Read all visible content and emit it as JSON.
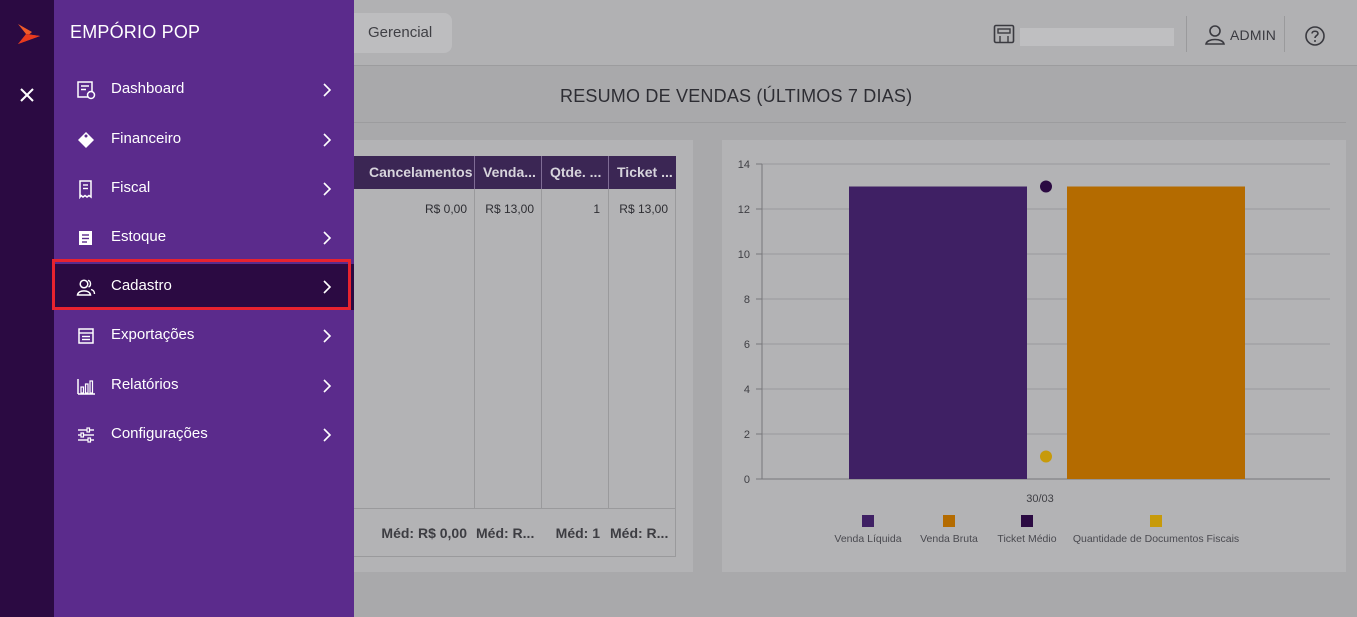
{
  "app": {
    "brand": "EMPÓRIO POP",
    "tab_label": "Gerencial",
    "user_label": "ADMIN"
  },
  "menu": {
    "items": [
      {
        "label": "Dashboard",
        "icon": "dashboard-icon"
      },
      {
        "label": "Financeiro",
        "icon": "tag-icon"
      },
      {
        "label": "Fiscal",
        "icon": "receipt-icon"
      },
      {
        "label": "Estoque",
        "icon": "box-icon"
      },
      {
        "label": "Cadastro",
        "icon": "users-icon",
        "active": true
      },
      {
        "label": "Exportações",
        "icon": "export-icon"
      },
      {
        "label": "Relatórios",
        "icon": "bar-report-icon"
      },
      {
        "label": "Configurações",
        "icon": "sliders-icon"
      }
    ]
  },
  "summary": {
    "title": "RESUMO DE VENDAS (ÚLTIMOS 7 DIAS)"
  },
  "table": {
    "headers": [
      "Cancelamentos",
      "Venda...",
      "Qtde. ...",
      "Ticket ..."
    ],
    "row": [
      "R$ 0,00",
      "R$ 13,00",
      "1",
      "R$ 13,00"
    ],
    "footer": [
      "Méd: R$ 0,00",
      "Méd: R...",
      "Méd: 1",
      "Méd: R..."
    ]
  },
  "chart_data": {
    "type": "bar",
    "categories": [
      "30/03"
    ],
    "ylim": [
      0,
      14
    ],
    "yticks": [
      0,
      2,
      4,
      6,
      8,
      10,
      12,
      14
    ],
    "grid": true,
    "legend_position": "bottom",
    "series": [
      {
        "name": "Venda Líquida",
        "kind": "bar",
        "values": [
          13
        ],
        "color": "#3f2064"
      },
      {
        "name": "Venda Bruta",
        "kind": "bar",
        "values": [
          13
        ],
        "color": "#b46b00"
      },
      {
        "name": "Ticket Médio",
        "kind": "point",
        "values": [
          13
        ],
        "color": "#2b0a42"
      },
      {
        "name": "Quantidade de Documentos Fiscais",
        "kind": "point",
        "values": [
          1
        ],
        "color": "#c79a0a"
      }
    ]
  },
  "colors": {
    "drawer": "#5b2b8c",
    "rail": "#2b0a42",
    "highlight": "#e8232f"
  }
}
